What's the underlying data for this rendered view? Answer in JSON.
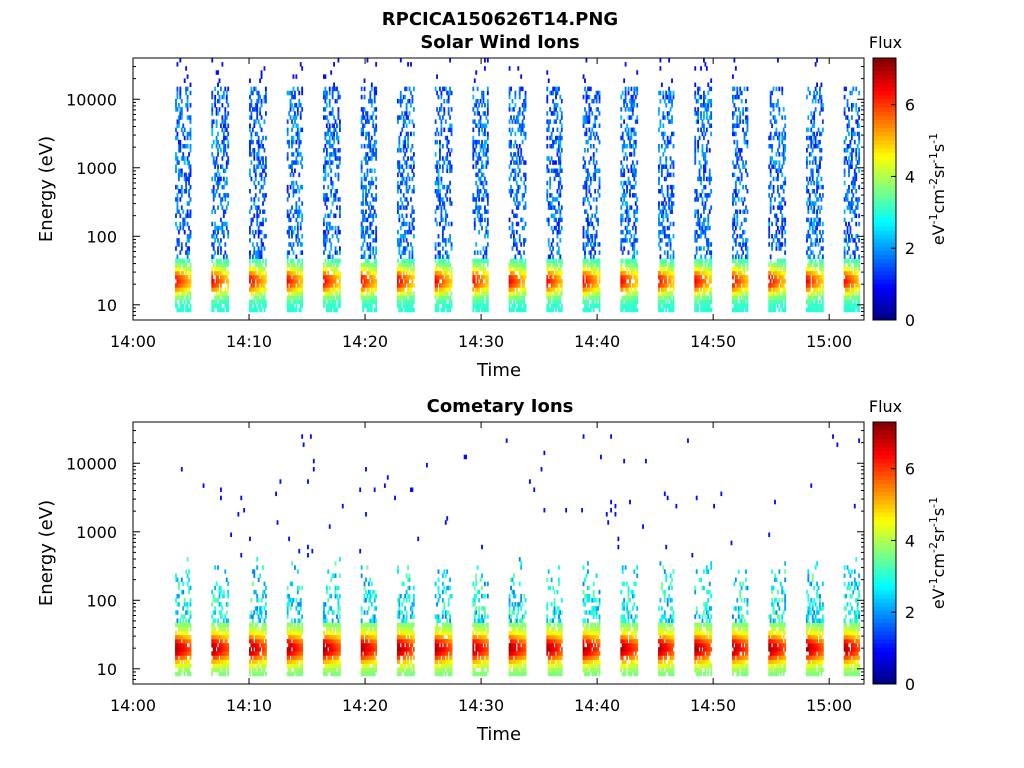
{
  "figure_title": "RPCICA150626T14.PNG",
  "chart_data": [
    {
      "type": "heatmap",
      "title": "Solar Wind Ions",
      "xlabel": "Time",
      "ylabel": "Energy (eV)",
      "y_scale": "log",
      "ylim": [
        6,
        40000
      ],
      "xlim": [
        "14:00",
        "15:03"
      ],
      "x_ticks": [
        "14:00",
        "14:10",
        "14:20",
        "14:30",
        "14:40",
        "14:50",
        "15:00"
      ],
      "y_ticks": [
        "10",
        "100",
        "1000",
        "10000"
      ],
      "colorbar": {
        "label": "Flux",
        "unit_label": "eV-1cm-2sr-1s-1",
        "ticks": [
          "0",
          "2",
          "4",
          "6"
        ],
        "range": [
          0,
          7.3
        ],
        "colormap": "jet"
      },
      "sweep_period_minutes": 3.2,
      "sweep_start_minutes": [
        3.6,
        6.8,
        10.0,
        13.2,
        16.4,
        19.6,
        22.8,
        26.0,
        29.2,
        32.4,
        35.6,
        38.8,
        42.0,
        45.2,
        48.4,
        51.6,
        54.8,
        58.0,
        61.2
      ],
      "description": "Vertical bursts every ~3.2 min; low flux (1-2) spread from ~40 eV to ~15000 eV, peak flux ~5-6.5 near 15-40 eV"
    },
    {
      "type": "heatmap",
      "title": "Cometary Ions",
      "xlabel": "Time",
      "ylabel": "Energy (eV)",
      "y_scale": "log",
      "ylim": [
        6,
        40000
      ],
      "xlim": [
        "14:00",
        "15:03"
      ],
      "x_ticks": [
        "14:00",
        "14:10",
        "14:20",
        "14:30",
        "14:40",
        "14:50",
        "15:00"
      ],
      "y_ticks": [
        "10",
        "100",
        "1000",
        "10000"
      ],
      "colorbar": {
        "label": "Flux",
        "unit_label": "eV-1cm-2sr-1s-1",
        "ticks": [
          "0",
          "2",
          "4",
          "6"
        ],
        "range": [
          0,
          7.3
        ],
        "colormap": "jet"
      },
      "sweep_period_minutes": 3.2,
      "sweep_start_minutes": [
        3.6,
        6.8,
        10.0,
        13.2,
        16.4,
        19.6,
        22.8,
        26.0,
        29.2,
        32.4,
        35.6,
        38.8,
        42.0,
        45.2,
        48.4,
        51.6,
        54.8,
        58.0,
        61.2
      ],
      "description": "Strong flux (6-7) between ~10-40 eV, tails to ~400 eV, sparse isolated counts up to ~20000 eV"
    }
  ]
}
